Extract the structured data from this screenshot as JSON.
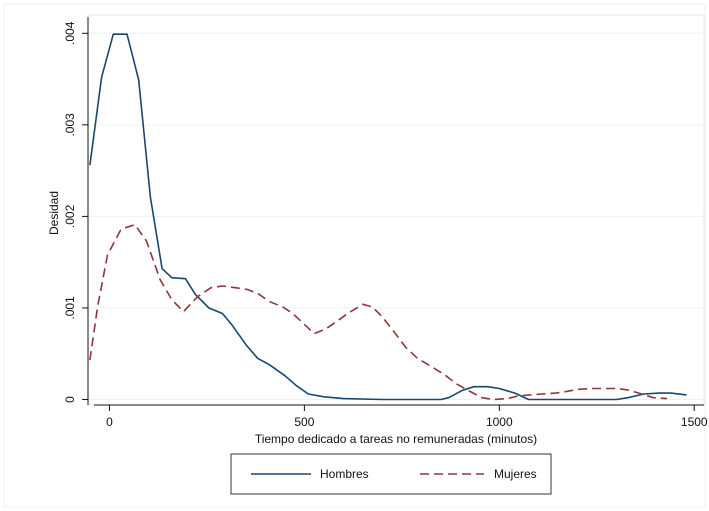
{
  "chart_data": {
    "type": "line",
    "xlabel": "Tiempo dedicado a tareas no remuneradas (minutos)",
    "ylabel": "Desidad",
    "xlim": [
      -55,
      1525
    ],
    "ylim": [
      -6e-05,
      0.0042
    ],
    "x_ticks": [
      0,
      500,
      1000,
      1500
    ],
    "y_ticks": [
      0,
      0.001,
      0.002,
      0.003,
      0.004
    ],
    "x_tick_labels": [
      "0",
      "500",
      "1000",
      "1500"
    ],
    "y_tick_labels": [
      "0",
      ".001",
      ".002",
      ".003",
      ".004"
    ],
    "grid": "horizontal",
    "legend_position": "bottom",
    "series": [
      {
        "name": "Hombres",
        "color": "#1a476f",
        "dash": "solid",
        "points": [
          [
            -50,
            0.00256
          ],
          [
            -20,
            0.00352
          ],
          [
            10,
            0.00399
          ],
          [
            45,
            0.00399
          ],
          [
            75,
            0.00349
          ],
          [
            105,
            0.00221
          ],
          [
            135,
            0.00143
          ],
          [
            160,
            0.00133
          ],
          [
            195,
            0.00132
          ],
          [
            220,
            0.00115
          ],
          [
            255,
            0.001
          ],
          [
            290,
            0.00094
          ],
          [
            315,
            0.00081
          ],
          [
            350,
            0.0006
          ],
          [
            380,
            0.00045
          ],
          [
            410,
            0.00038
          ],
          [
            450,
            0.00026
          ],
          [
            480,
            0.00015
          ],
          [
            510,
            6e-05
          ],
          [
            550,
            3e-05
          ],
          [
            600,
            1e-05
          ],
          [
            700,
            0.0
          ],
          [
            800,
            0.0
          ],
          [
            850,
            0.0
          ],
          [
            870,
            2e-05
          ],
          [
            905,
            0.0001
          ],
          [
            935,
            0.00014
          ],
          [
            970,
            0.00014
          ],
          [
            1000,
            0.00012
          ],
          [
            1040,
            7e-05
          ],
          [
            1075,
            0.0
          ],
          [
            1150,
            0.0
          ],
          [
            1300,
            0.0
          ],
          [
            1330,
            2e-05
          ],
          [
            1370,
            6e-05
          ],
          [
            1410,
            7e-05
          ],
          [
            1440,
            7e-05
          ],
          [
            1480,
            5e-05
          ]
        ]
      },
      {
        "name": "Mujeres",
        "color": "#90353b",
        "dash": "dashed",
        "points": [
          [
            -50,
            0.00043
          ],
          [
            -30,
            0.00102
          ],
          [
            -5,
            0.00158
          ],
          [
            30,
            0.00186
          ],
          [
            65,
            0.00191
          ],
          [
            95,
            0.00173
          ],
          [
            130,
            0.00131
          ],
          [
            160,
            0.00109
          ],
          [
            190,
            0.00096
          ],
          [
            225,
            0.00112
          ],
          [
            260,
            0.00122
          ],
          [
            290,
            0.00124
          ],
          [
            325,
            0.00122
          ],
          [
            355,
            0.0012
          ],
          [
            380,
            0.00116
          ],
          [
            410,
            0.00107
          ],
          [
            445,
            0.00101
          ],
          [
            470,
            0.00094
          ],
          [
            500,
            0.00082
          ],
          [
            525,
            0.00072
          ],
          [
            555,
            0.00077
          ],
          [
            585,
            0.00086
          ],
          [
            615,
            0.00095
          ],
          [
            650,
            0.00104
          ],
          [
            675,
            0.00101
          ],
          [
            700,
            0.0009
          ],
          [
            730,
            0.00074
          ],
          [
            760,
            0.00057
          ],
          [
            790,
            0.00045
          ],
          [
            830,
            0.00035
          ],
          [
            860,
            0.00027
          ],
          [
            890,
            0.00017
          ],
          [
            920,
            0.0001
          ],
          [
            955,
            2e-05
          ],
          [
            985,
            0.0
          ],
          [
            1020,
            1e-05
          ],
          [
            1050,
            4e-05
          ],
          [
            1080,
            5e-05
          ],
          [
            1110,
            6e-05
          ],
          [
            1145,
            7e-05
          ],
          [
            1175,
            9e-05
          ],
          [
            1200,
            0.00011
          ],
          [
            1240,
            0.00012
          ],
          [
            1275,
            0.00012
          ],
          [
            1305,
            0.00012
          ],
          [
            1335,
            0.0001
          ],
          [
            1365,
            6e-05
          ],
          [
            1395,
            2e-05
          ],
          [
            1430,
            1e-05
          ]
        ]
      }
    ]
  }
}
